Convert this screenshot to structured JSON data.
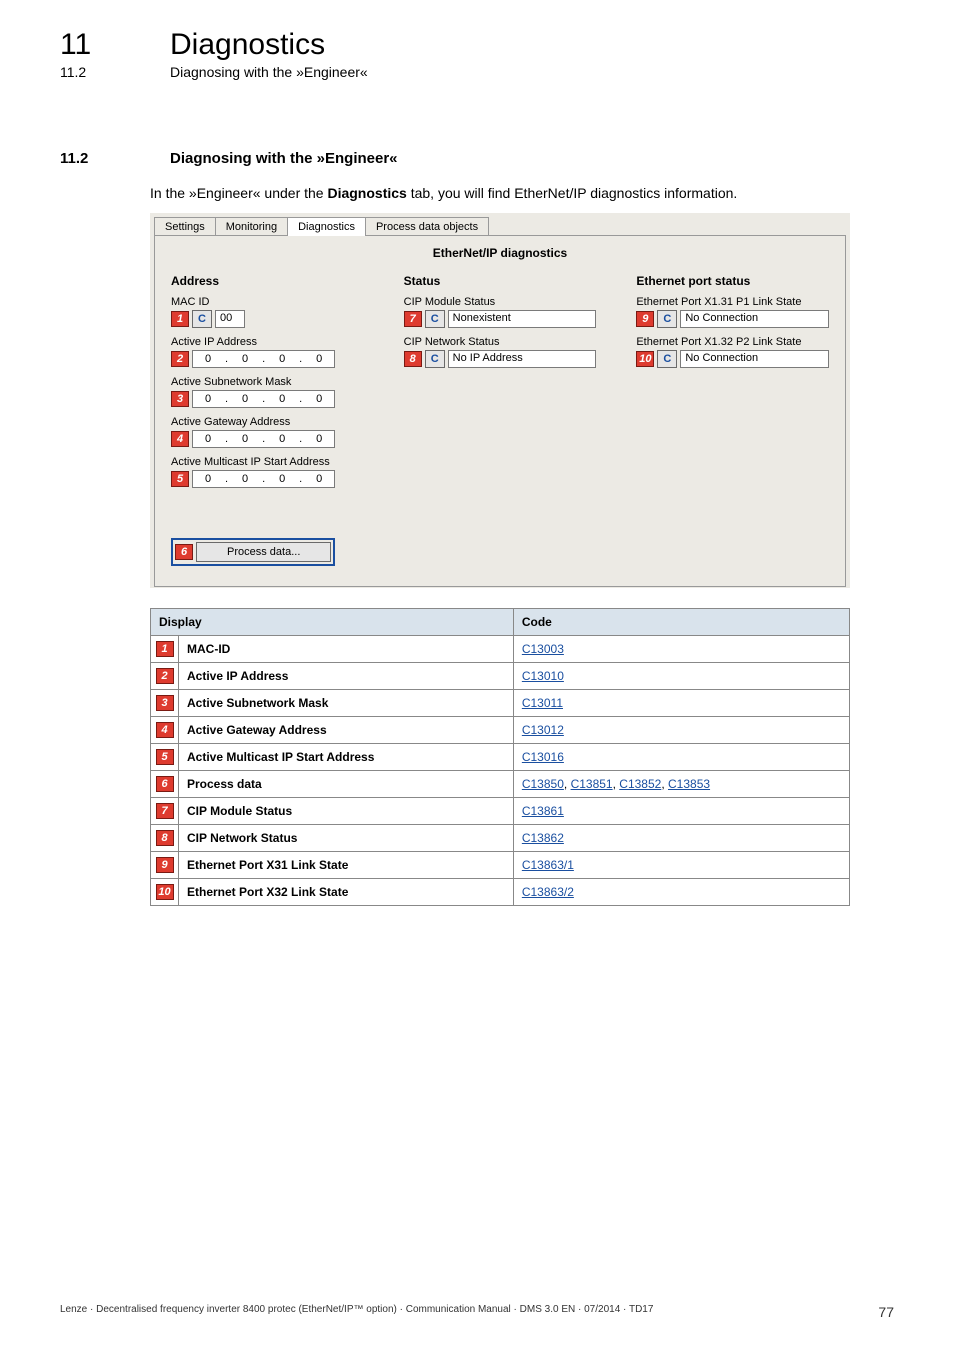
{
  "header": {
    "chapter_num": "11",
    "chapter_title": "Diagnostics",
    "sub_num": "11.2",
    "sub_title": "Diagnosing with the »Engineer«"
  },
  "section": {
    "num": "11.2",
    "title": "Diagnosing with the »Engineer«",
    "intro_pre": "In the »Engineer« under the ",
    "intro_bold": "Diagnostics",
    "intro_post": " tab, you will find EtherNet/IP diagnostics information."
  },
  "screenshot": {
    "tabs": [
      "Settings",
      "Monitoring",
      "Diagnostics",
      "Process data objects"
    ],
    "active_tab_index": 2,
    "panel_title": "EtherNet/IP diagnostics",
    "columns": {
      "address": {
        "heading": "Address",
        "mac_id_label": "MAC ID",
        "mac_id_badge": "1",
        "mac_id_value": "00",
        "active_ip_label": "Active IP Address",
        "active_ip_badge": "2",
        "active_ip_octets": [
          "0",
          "0",
          "0",
          "0"
        ],
        "subnet_label": "Active Subnetwork Mask",
        "subnet_badge": "3",
        "subnet_octets": [
          "0",
          "0",
          "0",
          "0"
        ],
        "gateway_label": "Active Gateway Address",
        "gateway_badge": "4",
        "gateway_octets": [
          "0",
          "0",
          "0",
          "0"
        ],
        "multicast_label": "Active Multicast IP Start Address",
        "multicast_badge": "5",
        "multicast_octets": [
          "0",
          "0",
          "0",
          "0"
        ],
        "process_badge": "6",
        "process_btn": "Process data..."
      },
      "status": {
        "heading": "Status",
        "cip_module_label": "CIP Module Status",
        "cip_module_badge": "7",
        "cip_module_value": "Nonexistent",
        "cip_network_label": "CIP Network Status",
        "cip_network_badge": "8",
        "cip_network_value": "No IP Address"
      },
      "ethernet": {
        "heading": "Ethernet port status",
        "p1_label": "Ethernet Port X1.31 P1 Link State",
        "p1_badge": "9",
        "p1_value": "No Connection",
        "p2_label": "Ethernet Port X1.32 P2 Link State",
        "p2_badge": "10",
        "p2_value": "No Connection"
      }
    },
    "c_button_label": "C"
  },
  "ref_table": {
    "header_display": "Display",
    "header_code": "Code",
    "rows": [
      {
        "badge": "1",
        "display": "MAC-ID",
        "codes": [
          "C13003"
        ]
      },
      {
        "badge": "2",
        "display": "Active IP Address",
        "codes": [
          "C13010"
        ]
      },
      {
        "badge": "3",
        "display": "Active Subnetwork Mask",
        "codes": [
          "C13011"
        ]
      },
      {
        "badge": "4",
        "display": "Active Gateway Address",
        "codes": [
          "C13012"
        ]
      },
      {
        "badge": "5",
        "display": "Active Multicast IP Start Address",
        "codes": [
          "C13016"
        ]
      },
      {
        "badge": "6",
        "display": "Process data",
        "codes": [
          "C13850",
          "C13851",
          "C13852",
          "C13853"
        ]
      },
      {
        "badge": "7",
        "display": "CIP Module Status",
        "codes": [
          "C13861"
        ]
      },
      {
        "badge": "8",
        "display": "CIP Network Status",
        "codes": [
          "C13862"
        ]
      },
      {
        "badge": "9",
        "display": "Ethernet Port X31 Link State",
        "codes": [
          "C13863/1"
        ]
      },
      {
        "badge": "10",
        "display": "Ethernet Port X32 Link State",
        "codes": [
          "C13863/2"
        ]
      }
    ]
  },
  "footer": {
    "left": "Lenze · Decentralised frequency inverter 8400 protec (EtherNet/IP™ option) · Communication Manual · DMS 3.0 EN · 07/2014 · TD17",
    "page": "77"
  },
  "style": {
    "badge_bg": "#de3b2f",
    "badge_border": "#7a1a13",
    "link_color": "#1a4fa0",
    "table_header_bg": "#d9e3ec",
    "screenshot_bg": "#eceae4"
  }
}
